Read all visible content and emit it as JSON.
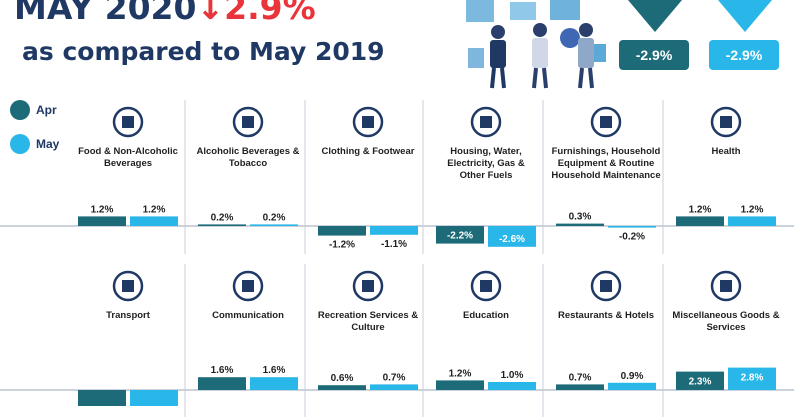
{
  "header": {
    "title_prefix": "MAY 2020",
    "title_arrow": "↓",
    "title_change": "2.9%",
    "subtitle": "as compared to May 2019",
    "boxes": [
      {
        "value": "-2.9%",
        "color": "#1d6b78"
      },
      {
        "value": "-2.9%",
        "color": "#29b6e8"
      }
    ]
  },
  "legend": [
    {
      "label": "Apr",
      "color": "#1d6b78"
    },
    {
      "label": "May",
      "color": "#29b6e8"
    }
  ],
  "colors": {
    "apr": "#1d6b78",
    "may": "#29b6e8",
    "text": "#1f3864"
  },
  "chart_data": {
    "type": "bar",
    "series": [
      {
        "name": "Apr"
      },
      {
        "name": "May"
      }
    ],
    "panels": [
      {
        "category": "Food & Non-Alcoholic Beverages",
        "icon": "food-icon",
        "apr": 1.2,
        "may": 1.2,
        "apr_label": "1.2%",
        "may_label": "1.2%"
      },
      {
        "category": "Alcoholic Beverages & Tobacco",
        "icon": "wine-bottle-icon",
        "apr": 0.2,
        "may": 0.2,
        "apr_label": "0.2%",
        "may_label": "0.2%"
      },
      {
        "category": "Clothing & Footwear",
        "icon": "shirt-icon",
        "apr": -1.2,
        "may": -1.1,
        "apr_label": "-1.2%",
        "may_label": "-1.1%"
      },
      {
        "category": "Housing, Water, Electricity, Gas & Other Fuels",
        "icon": "house-icon",
        "apr": -2.2,
        "may": -2.6,
        "apr_label": "-2.2%",
        "may_label": "-2.6%"
      },
      {
        "category": "Furnishings, Household Equipment & Routine Household Maintenance",
        "icon": "armchair-icon",
        "apr": 0.3,
        "may": -0.2,
        "apr_label": "0.3%",
        "may_label": "-0.2%"
      },
      {
        "category": "Health",
        "icon": "stethoscope-icon",
        "apr": 1.2,
        "may": 1.2,
        "apr_label": "1.2%",
        "may_label": "1.2%"
      },
      {
        "category": "Transport",
        "icon": "car-plane-icon",
        "apr": -2.0,
        "may": -2.0,
        "apr_label": "",
        "may_label": ""
      },
      {
        "category": "Communication",
        "icon": "phone-icon",
        "apr": 1.6,
        "may": 1.6,
        "apr_label": "1.6%",
        "may_label": "1.6%"
      },
      {
        "category": "Recreation Services & Culture",
        "icon": "theatre-masks-icon",
        "apr": 0.6,
        "may": 0.7,
        "apr_label": "0.6%",
        "may_label": "0.7%"
      },
      {
        "category": "Education",
        "icon": "graduation-cap-icon",
        "apr": 1.2,
        "may": 1.0,
        "apr_label": "1.2%",
        "may_label": "1.0%"
      },
      {
        "category": "Restaurants & Hotels",
        "icon": "restaurant-icon",
        "apr": 0.7,
        "may": 0.9,
        "apr_label": "0.7%",
        "may_label": "0.9%"
      },
      {
        "category": "Miscellaneous Goods & Services",
        "icon": "misc-goods-icon",
        "apr": 2.3,
        "may": 2.8,
        "apr_label": "2.3%",
        "may_label": "2.8%"
      }
    ]
  }
}
